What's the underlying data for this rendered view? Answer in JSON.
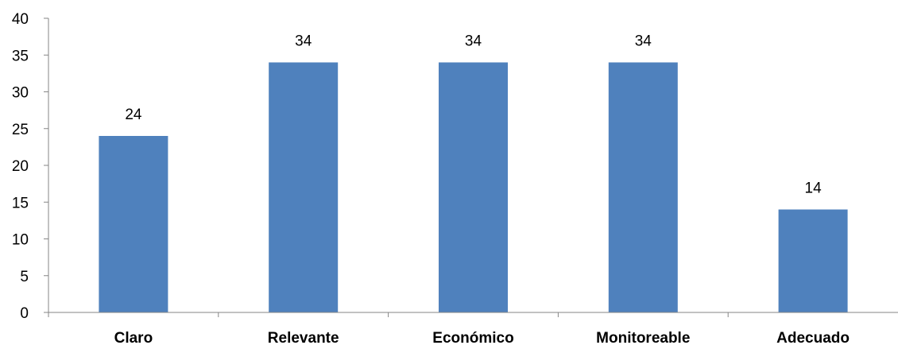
{
  "chart_data": {
    "type": "bar",
    "title": "",
    "xlabel": "",
    "ylabel": "",
    "categories": [
      "Claro",
      "Relevante",
      "Económico",
      "Monitoreable",
      "Adecuado"
    ],
    "values": [
      24,
      34,
      34,
      34,
      14
    ],
    "data_labels": [
      "24",
      "34",
      "34",
      "34",
      "14"
    ],
    "ylim": [
      0,
      40
    ],
    "yticks": [
      0,
      5,
      10,
      15,
      20,
      25,
      30,
      35,
      40
    ],
    "ytick_labels": [
      "0",
      "5",
      "10",
      "15",
      "20",
      "25",
      "30",
      "35",
      "40"
    ],
    "grid": false,
    "legend": "none",
    "bar_color": "#4f81bd",
    "axis_color": "#868686"
  }
}
